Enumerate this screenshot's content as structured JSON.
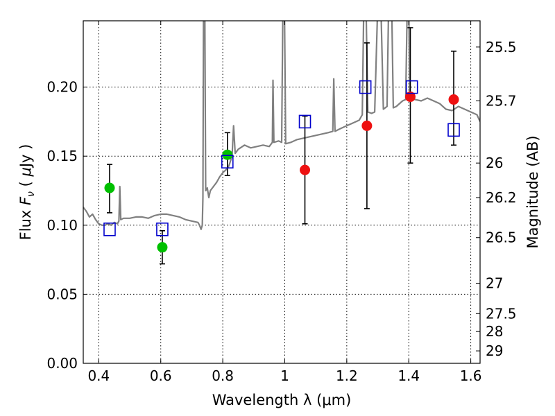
{
  "chart_data": {
    "type": "scatter",
    "xlabel": "Wavelength  λ (μm)",
    "ylabel_parts": [
      "Flux  ",
      "F",
      "ν",
      "  ( ",
      "μ",
      "Jy )"
    ],
    "y2label": "Magnitude (AB)",
    "xlim": [
      0.35,
      1.63
    ],
    "ylim": [
      0,
      0.248
    ],
    "grid": true,
    "x_ticks": [
      0.4,
      0.6,
      0.8,
      1.0,
      1.2,
      1.4,
      1.6
    ],
    "x_tick_labels": [
      "0.4",
      "0.6",
      "0.8",
      "1",
      "1.2",
      "1.4",
      "1.6"
    ],
    "y_ticks": [
      0.0,
      0.05,
      0.1,
      0.15,
      0.2
    ],
    "y_tick_labels": [
      "0.00",
      "0.05",
      "0.10",
      "0.15",
      "0.20"
    ],
    "y2_ticks": [
      {
        "label": "25.5",
        "flux": 0.229
      },
      {
        "label": "25.7",
        "flux": 0.19
      },
      {
        "label": "26",
        "flux": 0.145
      },
      {
        "label": "26.2",
        "flux": 0.12
      },
      {
        "label": "26.5",
        "flux": 0.091
      },
      {
        "label": "27",
        "flux": 0.058
      },
      {
        "label": "27.5",
        "flux": 0.036
      },
      {
        "label": "28",
        "flux": 0.023
      },
      {
        "label": "29",
        "flux": 0.009
      }
    ],
    "series": [
      {
        "marker": "circle",
        "color": "#00c000",
        "points": [
          {
            "x": 0.435,
            "y": 0.127,
            "err_low": 0.109,
            "err_high": 0.144
          },
          {
            "x": 0.605,
            "y": 0.084,
            "err_low": 0.072,
            "err_high": 0.096
          },
          {
            "x": 0.815,
            "y": 0.151,
            "err_low": 0.136,
            "err_high": 0.167
          }
        ]
      },
      {
        "marker": "circle",
        "color": "#ee1111",
        "points": [
          {
            "x": 1.065,
            "y": 0.14,
            "err_low": 0.101,
            "err_high": 0.179
          },
          {
            "x": 1.265,
            "y": 0.172,
            "err_low": 0.112,
            "err_high": 0.232
          },
          {
            "x": 1.405,
            "y": 0.193,
            "err_low": 0.145,
            "err_high": 0.243
          },
          {
            "x": 1.545,
            "y": 0.191,
            "err_low": 0.158,
            "err_high": 0.226
          }
        ]
      },
      {
        "marker": "square-open",
        "color": "#0000cc",
        "points": [
          {
            "x": 0.435,
            "y": 0.097
          },
          {
            "x": 0.605,
            "y": 0.097
          },
          {
            "x": 0.815,
            "y": 0.146
          },
          {
            "x": 1.065,
            "y": 0.175
          },
          {
            "x": 1.26,
            "y": 0.2
          },
          {
            "x": 1.41,
            "y": 0.2
          },
          {
            "x": 1.545,
            "y": 0.169
          }
        ]
      }
    ],
    "model_spectrum": {
      "color": "#808080",
      "points": [
        [
          0.35,
          0.113
        ],
        [
          0.36,
          0.11
        ],
        [
          0.37,
          0.106
        ],
        [
          0.38,
          0.108
        ],
        [
          0.39,
          0.104
        ],
        [
          0.4,
          0.101
        ],
        [
          0.41,
          0.1
        ],
        [
          0.42,
          0.1
        ],
        [
          0.43,
          0.101
        ],
        [
          0.44,
          0.1
        ],
        [
          0.45,
          0.102
        ],
        [
          0.46,
          0.101
        ],
        [
          0.465,
          0.103
        ],
        [
          0.468,
          0.128
        ],
        [
          0.471,
          0.104
        ],
        [
          0.48,
          0.105
        ],
        [
          0.5,
          0.105
        ],
        [
          0.52,
          0.106
        ],
        [
          0.54,
          0.106
        ],
        [
          0.56,
          0.105
        ],
        [
          0.58,
          0.107
        ],
        [
          0.6,
          0.108
        ],
        [
          0.62,
          0.108
        ],
        [
          0.64,
          0.107
        ],
        [
          0.66,
          0.106
        ],
        [
          0.68,
          0.104
        ],
        [
          0.7,
          0.103
        ],
        [
          0.72,
          0.102
        ],
        [
          0.725,
          0.1
        ],
        [
          0.73,
          0.097
        ],
        [
          0.734,
          0.1
        ],
        [
          0.736,
          0.12
        ],
        [
          0.738,
          0.26
        ],
        [
          0.742,
          0.26
        ],
        [
          0.745,
          0.125
        ],
        [
          0.75,
          0.127
        ],
        [
          0.755,
          0.12
        ],
        [
          0.76,
          0.125
        ],
        [
          0.77,
          0.128
        ],
        [
          0.78,
          0.131
        ],
        [
          0.79,
          0.135
        ],
        [
          0.8,
          0.138
        ],
        [
          0.81,
          0.14
        ],
        [
          0.82,
          0.143
        ],
        [
          0.83,
          0.15
        ],
        [
          0.835,
          0.172
        ],
        [
          0.84,
          0.152
        ],
        [
          0.85,
          0.155
        ],
        [
          0.87,
          0.158
        ],
        [
          0.89,
          0.156
        ],
        [
          0.91,
          0.157
        ],
        [
          0.93,
          0.158
        ],
        [
          0.95,
          0.157
        ],
        [
          0.96,
          0.16
        ],
        [
          0.962,
          0.205
        ],
        [
          0.965,
          0.16
        ],
        [
          0.98,
          0.161
        ],
        [
          0.99,
          0.16
        ],
        [
          0.994,
          0.26
        ],
        [
          0.999,
          0.26
        ],
        [
          1.003,
          0.159
        ],
        [
          1.02,
          0.16
        ],
        [
          1.04,
          0.162
        ],
        [
          1.06,
          0.163
        ],
        [
          1.08,
          0.164
        ],
        [
          1.1,
          0.165
        ],
        [
          1.12,
          0.166
        ],
        [
          1.14,
          0.167
        ],
        [
          1.155,
          0.168
        ],
        [
          1.158,
          0.206
        ],
        [
          1.162,
          0.168
        ],
        [
          1.18,
          0.17
        ],
        [
          1.2,
          0.172
        ],
        [
          1.22,
          0.174
        ],
        [
          1.24,
          0.176
        ],
        [
          1.25,
          0.18
        ],
        [
          1.255,
          0.26
        ],
        [
          1.262,
          0.26
        ],
        [
          1.268,
          0.182
        ],
        [
          1.28,
          0.181
        ],
        [
          1.29,
          0.182
        ],
        [
          1.3,
          0.26
        ],
        [
          1.31,
          0.26
        ],
        [
          1.318,
          0.184
        ],
        [
          1.33,
          0.186
        ],
        [
          1.335,
          0.26
        ],
        [
          1.345,
          0.26
        ],
        [
          1.35,
          0.185
        ],
        [
          1.36,
          0.186
        ],
        [
          1.37,
          0.188
        ],
        [
          1.38,
          0.19
        ],
        [
          1.39,
          0.191
        ],
        [
          1.395,
          0.26
        ],
        [
          1.4,
          0.26
        ],
        [
          1.403,
          0.192
        ],
        [
          1.42,
          0.191
        ],
        [
          1.44,
          0.19
        ],
        [
          1.46,
          0.192
        ],
        [
          1.48,
          0.19
        ],
        [
          1.5,
          0.188
        ],
        [
          1.52,
          0.184
        ],
        [
          1.54,
          0.183
        ],
        [
          1.56,
          0.186
        ],
        [
          1.58,
          0.184
        ],
        [
          1.6,
          0.182
        ],
        [
          1.62,
          0.18
        ],
        [
          1.63,
          0.175
        ]
      ]
    }
  }
}
